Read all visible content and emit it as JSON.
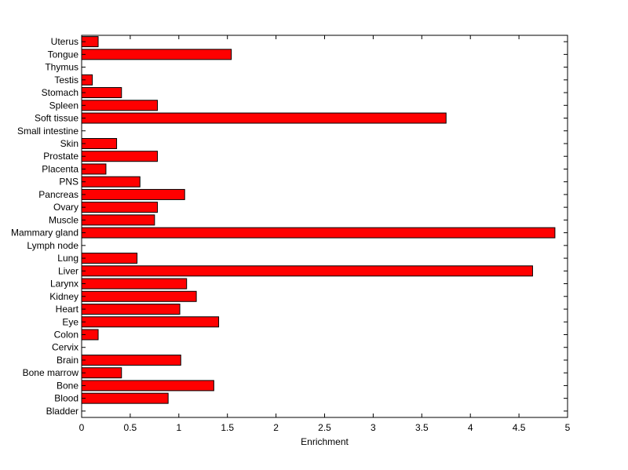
{
  "chart_data": {
    "type": "bar",
    "orientation": "horizontal",
    "categories": [
      "Uterus",
      "Tongue",
      "Thymus",
      "Testis",
      "Stomach",
      "Spleen",
      "Soft tissue",
      "Small intestine",
      "Skin",
      "Prostate",
      "Placenta",
      "PNS",
      "Pancreas",
      "Ovary",
      "Muscle",
      "Mammary gland",
      "Lymph node",
      "Lung",
      "Liver",
      "Larynx",
      "Kidney",
      "Heart",
      "Eye",
      "Colon",
      "Cervix",
      "Brain",
      "Bone marrow",
      "Bone",
      "Blood",
      "Bladder"
    ],
    "values": [
      0.17,
      1.54,
      0,
      0.11,
      0.41,
      0.78,
      3.75,
      0,
      0.36,
      0.78,
      0.25,
      0.6,
      1.06,
      0.78,
      0.75,
      4.87,
      0,
      0.57,
      4.64,
      1.08,
      1.18,
      1.01,
      1.41,
      0.17,
      0,
      1.02,
      0.41,
      1.36,
      0.89,
      0
    ],
    "title": "",
    "xlabel": "Enrichment",
    "ylabel": "",
    "xlim": [
      0,
      5
    ],
    "xticks": [
      "0",
      "0.5",
      "1",
      "1.5",
      "2",
      "2.5",
      "3",
      "3.5",
      "4",
      "4.5",
      "5"
    ],
    "grid": false,
    "colors": {
      "bar_fill": "#ff0000",
      "bar_stroke": "#000000",
      "axis": "#000000"
    }
  }
}
